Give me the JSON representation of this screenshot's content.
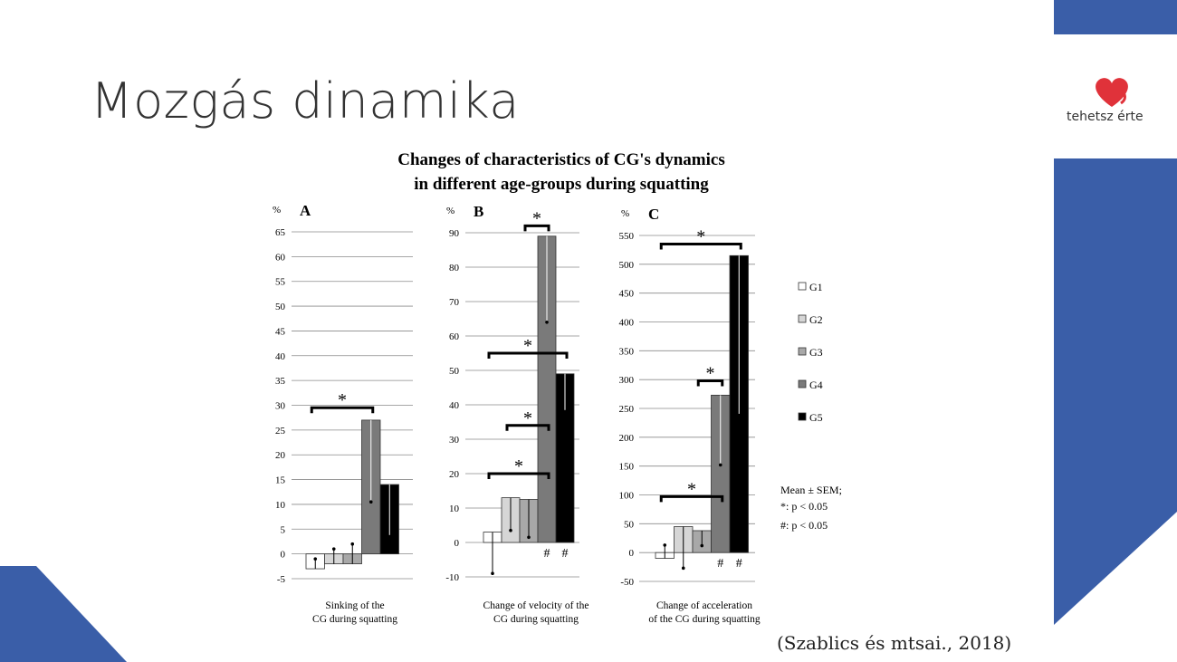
{
  "slide": {
    "title": "Mozgás dinamika",
    "logo_text": "tehetsz érte",
    "citation": "(Szablics és mtsai., 2018)",
    "colors": {
      "accent_blue": "#3a5ea8",
      "logo_red": "#e0323a"
    }
  },
  "figure": {
    "title_line1": "Changes of characteristics of CG's dynamics",
    "title_line2": "in different age-groups during squatting",
    "notes": [
      "Mean ± SEM;",
      "*: p < 0.05",
      "#: p < 0.05"
    ]
  },
  "chart_data": [
    {
      "type": "bar",
      "panel": "A",
      "unit": "%",
      "xlabel": [
        "Sinking of the",
        "CG during squatting"
      ],
      "categories": [
        "G1",
        "G2",
        "G3",
        "G4",
        "G5"
      ],
      "values": [
        -3,
        -2,
        -2,
        27,
        14
      ],
      "error_ends": [
        -1,
        1,
        2,
        10.5,
        3.5
      ],
      "ylim": [
        -5,
        65
      ],
      "yticks": [
        -5,
        0,
        5,
        10,
        15,
        20,
        25,
        30,
        35,
        40,
        45,
        50,
        55,
        60,
        65
      ],
      "significance": [
        {
          "from": 1,
          "to": 4,
          "y": 29.5,
          "mark": "*"
        }
      ],
      "hash_marks": []
    },
    {
      "type": "bar",
      "panel": "B",
      "unit": "%",
      "xlabel": [
        "Change of velocity of the",
        "CG during squatting"
      ],
      "categories": [
        "G1",
        "G2",
        "G3",
        "G4",
        "G5"
      ],
      "values": [
        3,
        13,
        12.5,
        89,
        49
      ],
      "error_ends": [
        -9,
        3.5,
        1.5,
        64,
        38
      ],
      "ylim": [
        -10,
        90
      ],
      "yticks": [
        -10,
        0,
        10,
        20,
        30,
        40,
        50,
        60,
        70,
        80,
        90
      ],
      "significance": [
        {
          "from": 1,
          "to": 4,
          "y": 20,
          "mark": "*"
        },
        {
          "from": 2,
          "to": 4,
          "y": 34,
          "mark": "*"
        },
        {
          "from": 1,
          "to": 5,
          "y": 55,
          "mark": "*"
        },
        {
          "from": 3,
          "to": 4,
          "y": 92,
          "mark": "*"
        }
      ],
      "hash_marks": [
        "G4",
        "G5"
      ]
    },
    {
      "type": "bar",
      "panel": "C",
      "unit": "%",
      "xlabel": [
        "Change of acceleration",
        "of the CG during squatting"
      ],
      "categories": [
        "G1",
        "G2",
        "G3",
        "G4",
        "G5"
      ],
      "values": [
        -10,
        45,
        38,
        273,
        515
      ],
      "error_ends": [
        13,
        -27,
        12,
        152,
        238
      ],
      "ylim": [
        -50,
        550
      ],
      "yticks": [
        -50,
        0,
        50,
        100,
        150,
        200,
        250,
        300,
        350,
        400,
        450,
        500,
        550
      ],
      "significance": [
        {
          "from": 1,
          "to": 4,
          "y": 97,
          "mark": "*"
        },
        {
          "from": 3,
          "to": 4,
          "y": 298,
          "mark": "*"
        },
        {
          "from": 1,
          "to": 5,
          "y": 535,
          "mark": "*"
        }
      ],
      "hash_marks": [
        "G4",
        "G5"
      ]
    }
  ],
  "legend": [
    {
      "label": "G1",
      "color": "#ffffff"
    },
    {
      "label": "G2",
      "color": "#d6d6d6"
    },
    {
      "label": "G3",
      "color": "#a8a8a8"
    },
    {
      "label": "G4",
      "color": "#7a7a7a"
    },
    {
      "label": "G5",
      "color": "#000000"
    }
  ]
}
